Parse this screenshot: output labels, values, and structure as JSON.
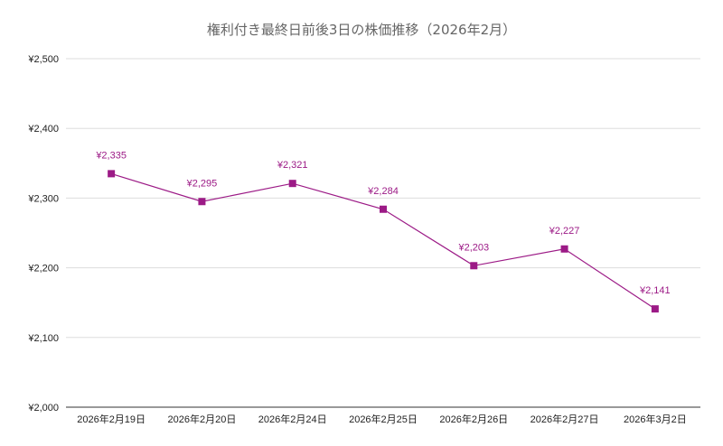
{
  "chart_data": {
    "type": "line",
    "title": "権利付き最終日前後3日の株価推移（2026年2月）",
    "xlabel": "",
    "ylabel": "",
    "categories": [
      "2026年2月19日",
      "2026年2月20日",
      "2026年2月24日",
      "2026年2月25日",
      "2026年2月26日",
      "2026年2月27日",
      "2026年3月2日"
    ],
    "series": [
      {
        "values": [
          2335,
          2295,
          2321,
          2284,
          2203,
          2227,
          2141
        ],
        "data_labels": [
          "¥2,335",
          "¥2,295",
          "¥2,321",
          "¥2,284",
          "¥2,203",
          "¥2,227",
          "¥2,141"
        ],
        "color": "#9c1a86"
      }
    ],
    "ylim": [
      2000,
      2500
    ],
    "yticks": [
      2000,
      2100,
      2200,
      2300,
      2400,
      2500
    ],
    "ytick_labels": [
      "¥2,000",
      "¥2,100",
      "¥2,200",
      "¥2,300",
      "¥2,400",
      "¥2,500"
    ],
    "grid": true,
    "legend": "none",
    "colors": {
      "series": "#9c1a86",
      "grid": "#dddddd",
      "axis_text": "#222222",
      "title": "#666666"
    }
  }
}
